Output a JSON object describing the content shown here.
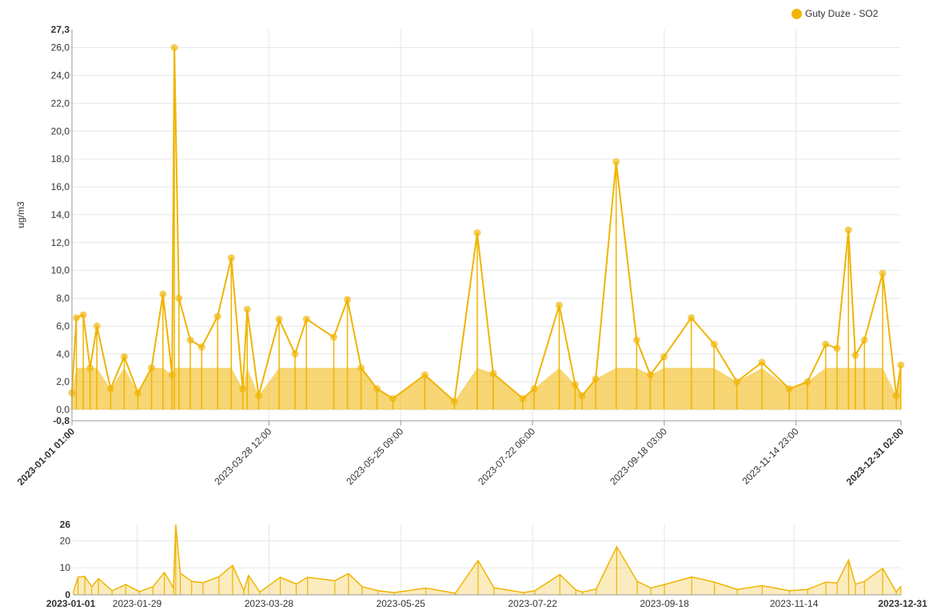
{
  "legend": {
    "label": "Guty Duże - SO2",
    "color": "#f0b400"
  },
  "main_chart": {
    "ylabel": "ug/m3",
    "y_ticks": [
      "-0,8",
      "0,0",
      "2,0",
      "4,0",
      "6,0",
      "8,0",
      "10,0",
      "12,0",
      "14,0",
      "16,0",
      "18,0",
      "20,0",
      "22,0",
      "24,0",
      "26,0",
      "27,3"
    ],
    "x_ticks": [
      "2023-01-01 01:00",
      "2023-03-28 12:00",
      "2023-05-25 09:00",
      "2023-07-22 06:00",
      "2023-09-18 03:00",
      "2023-11-14 23:00",
      "2023-12-31 02:00"
    ]
  },
  "navigator": {
    "y_ticks": [
      "0",
      "10",
      "20",
      "26"
    ],
    "x_ticks": [
      "2023-01-01",
      "2023-01-29",
      "2023-03-28",
      "2023-05-25",
      "2023-07-22",
      "2023-09-18",
      "2023-11-14",
      "2023-12-31"
    ]
  },
  "chart_data": {
    "type": "line",
    "title": "",
    "xlabel": "",
    "ylabel": "ug/m3",
    "ylim": [
      -0.8,
      27.3
    ],
    "xlim": [
      "2023-01-01 01:00",
      "2023-12-31 02:00"
    ],
    "grid": true,
    "legend_position": "top-right",
    "series": [
      {
        "name": "Guty Duże - SO2",
        "color": "#f0b400",
        "x": [
          "2023-01-01",
          "2023-01-03",
          "2023-01-06",
          "2023-01-09",
          "2023-01-12",
          "2023-01-18",
          "2023-01-24",
          "2023-01-30",
          "2023-02-05",
          "2023-02-10",
          "2023-02-14",
          "2023-02-15",
          "2023-02-17",
          "2023-02-22",
          "2023-02-27",
          "2023-03-06",
          "2023-03-12",
          "2023-03-17",
          "2023-03-19",
          "2023-03-24",
          "2023-04-02",
          "2023-04-09",
          "2023-04-14",
          "2023-04-26",
          "2023-05-02",
          "2023-05-08",
          "2023-05-15",
          "2023-05-22",
          "2023-06-05",
          "2023-06-18",
          "2023-06-28",
          "2023-07-05",
          "2023-07-18",
          "2023-07-23",
          "2023-08-03",
          "2023-08-10",
          "2023-08-13",
          "2023-08-19",
          "2023-08-28",
          "2023-09-06",
          "2023-09-12",
          "2023-09-18",
          "2023-09-30",
          "2023-10-10",
          "2023-10-20",
          "2023-10-31",
          "2023-11-12",
          "2023-11-20",
          "2023-11-28",
          "2023-12-03",
          "2023-12-08",
          "2023-12-11",
          "2023-12-15",
          "2023-12-23",
          "2023-12-29",
          "2023-12-31"
        ],
        "y": [
          1.2,
          6.6,
          6.8,
          3.0,
          6.0,
          1.5,
          3.8,
          1.2,
          3.0,
          8.3,
          2.5,
          26.0,
          8.0,
          5.0,
          4.5,
          6.7,
          10.9,
          1.5,
          7.2,
          1.0,
          6.5,
          4.0,
          6.5,
          5.2,
          7.9,
          3.0,
          1.5,
          0.8,
          2.5,
          0.6,
          12.7,
          2.6,
          0.8,
          1.5,
          7.5,
          1.8,
          1.0,
          2.2,
          17.8,
          5.0,
          2.5,
          3.8,
          6.6,
          4.7,
          2.0,
          3.4,
          1.5,
          2.0,
          4.7,
          4.4,
          12.9,
          3.9,
          5.0,
          9.8,
          1.0,
          3.2
        ]
      }
    ]
  }
}
